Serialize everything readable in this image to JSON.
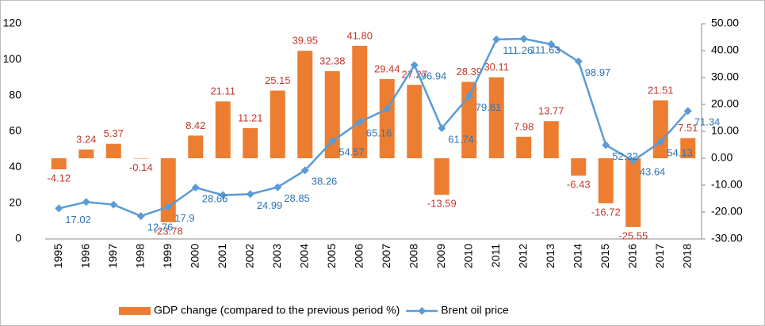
{
  "chart_data": {
    "type": "bar+line",
    "categories": [
      "1995",
      "1996",
      "1997",
      "1998",
      "1999",
      "2000",
      "2001",
      "2002",
      "2003",
      "2004",
      "2005",
      "2006",
      "2007",
      "2008",
      "2009",
      "2010",
      "2011",
      "2012",
      "2013",
      "2014",
      "2015",
      "2016",
      "2017",
      "2018"
    ],
    "series": [
      {
        "name": "GDP change (compared to the previous period %)",
        "type": "bar",
        "axis": "y2",
        "color": "#ed7d31",
        "label_color": "#c0392b",
        "values": [
          -4.12,
          3.24,
          5.37,
          -0.14,
          -23.78,
          8.42,
          21.11,
          11.21,
          25.15,
          39.95,
          32.38,
          41.8,
          29.44,
          27.27,
          -13.59,
          28.39,
          30.11,
          7.98,
          13.77,
          -6.43,
          -16.72,
          -25.55,
          21.51,
          7.51
        ],
        "value_labels": [
          "-4.12",
          "3.24",
          "5.37",
          "-0.14",
          "-23.78",
          "8.42",
          "21.11",
          "11.21",
          "25.15",
          "39.95",
          "32.38",
          "41.80",
          "29.44",
          "27.27",
          "-13.59",
          "28.39",
          "30.11",
          "7.98",
          "13.77",
          "-6.43",
          "-16.72",
          "-25.55",
          "21.51",
          "7.51"
        ]
      },
      {
        "name": "Brent oil price",
        "type": "line",
        "axis": "y",
        "color": "#5b9bd5",
        "label_color": "#2e75b6",
        "values": [
          17.02,
          20.64,
          19.11,
          12.76,
          17.9,
          28.66,
          24.46,
          24.99,
          28.85,
          38.26,
          54.57,
          65.16,
          72.44,
          96.94,
          61.74,
          79.61,
          111.26,
          111.63,
          108.56,
          98.97,
          52.32,
          43.64,
          54.13,
          71.34
        ],
        "value_labels": [
          "17.02",
          null,
          null,
          "12.76",
          "17.9",
          "28.66",
          null,
          "24.99",
          "28.85",
          "38.26",
          "54.57",
          "65.16",
          null,
          "96.94",
          "61.74",
          "79.61",
          "111.26",
          "111.63",
          null,
          "98.97",
          "52.32",
          "43.64",
          "54.13",
          "71.34"
        ]
      }
    ],
    "ylim": [
      0,
      120
    ],
    "yticks": [
      0,
      20,
      40,
      60,
      80,
      100,
      120
    ],
    "y2lim": [
      -30,
      50
    ],
    "y2ticks": [
      {
        "value": -30,
        "label": "-30.00"
      },
      {
        "value": -20,
        "label": "-20.00"
      },
      {
        "value": -10,
        "label": "-10.00"
      },
      {
        "value": 0,
        "label": "0.00"
      },
      {
        "value": 10,
        "label": "10.00"
      },
      {
        "value": 20,
        "label": "20.00"
      },
      {
        "value": 30,
        "label": "30.00"
      },
      {
        "value": 40,
        "label": "40.00"
      },
      {
        "value": 50,
        "label": "50.00"
      }
    ],
    "legend": "bottom",
    "grid": false
  }
}
